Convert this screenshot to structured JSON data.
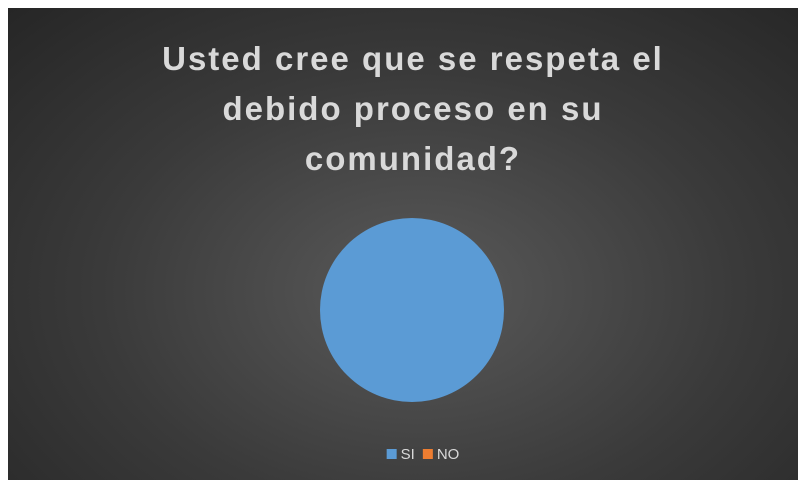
{
  "chart_data": {
    "type": "pie",
    "title": "Usted cree que se respeta el debido proceso en su comunidad?",
    "categories": [
      "SI",
      "NO"
    ],
    "values": [
      100,
      0
    ],
    "colors": [
      "#5b9bd5",
      "#ed7d31"
    ],
    "legend": "bottom"
  }
}
